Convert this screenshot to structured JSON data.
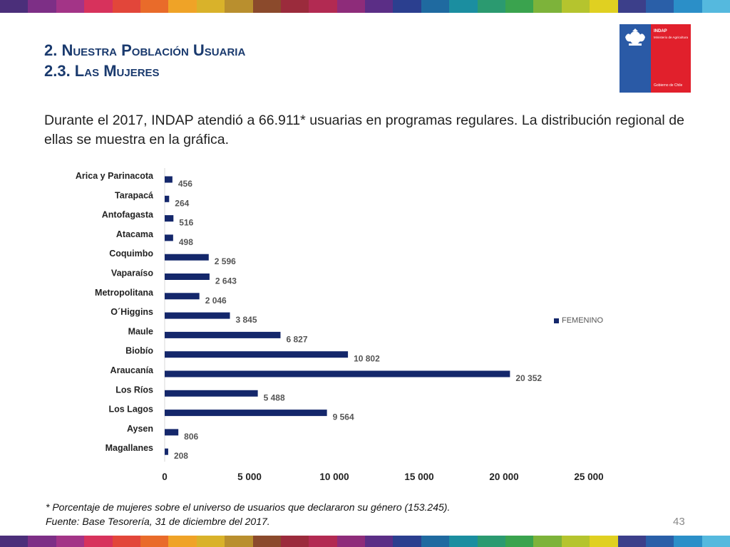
{
  "header": {
    "title_line1": "2. Nuestra Población Usuaria",
    "title_line2": "2.3. Las Mujeres"
  },
  "logo": {
    "org": "INDAP",
    "ministry": "Ministerio de Agricultura",
    "government": "Gobierno de Chile"
  },
  "intro": "Durante el 2017, INDAP atendió a 66.911* usuarias en programas regulares. La distribución regional de ellas se muestra en la gráfica.",
  "footnote": {
    "line1": "* Porcentaje de mujeres sobre el universo de usuarios que declararon su género (153.245).",
    "line2": "Fuente: Base Tesorería, 31 de diciembre del 2017."
  },
  "page_number": "43",
  "colors": {
    "bar": "#14276b",
    "title": "#1a3a6e",
    "stripe": [
      "#4b2f7a",
      "#7d2f86",
      "#a33487",
      "#d7325c",
      "#e2463a",
      "#e96b2a",
      "#efa327",
      "#d9b22a",
      "#b98f2e",
      "#8b4a2c",
      "#9b2b3c",
      "#b22a52",
      "#8e2c7a",
      "#5b2e86",
      "#2b3f8f",
      "#1f6aa0",
      "#1b8ea0",
      "#2b9a70",
      "#3aa34e",
      "#7db33a",
      "#b5c42e",
      "#e0d021",
      "#3c3f8a",
      "#2a5fa8",
      "#2b8fc8",
      "#55b9de"
    ]
  },
  "chart_data": {
    "type": "bar",
    "orientation": "horizontal",
    "categories": [
      "Arica y Parinacota",
      "Tarapacá",
      "Antofagasta",
      "Atacama",
      "Coquimbo",
      "Vaparaíso",
      "Metropolitana",
      "O´Higgins",
      "Maule",
      "Biobío",
      "Araucanía",
      "Los Ríos",
      "Los Lagos",
      "Aysen",
      "Magallanes"
    ],
    "series": [
      {
        "name": "FEMENINO",
        "values": [
          456,
          264,
          516,
          498,
          2596,
          2643,
          2046,
          3845,
          6827,
          10802,
          20352,
          5488,
          9564,
          806,
          208
        ]
      }
    ],
    "value_labels": [
      "456",
      "264",
      "516",
      "498",
      "2 596",
      "2 643",
      "2 046",
      "3 845",
      "6 827",
      "10 802",
      "20 352",
      "5 488",
      "9 564",
      "806",
      "208"
    ],
    "xlim": [
      0,
      25000
    ],
    "xticks": [
      0,
      5000,
      10000,
      15000,
      20000,
      25000
    ],
    "xtick_labels": [
      "0",
      "5 000",
      "10 000",
      "15 000",
      "20 000",
      "25 000"
    ],
    "legend_position": "right",
    "grid": false
  }
}
